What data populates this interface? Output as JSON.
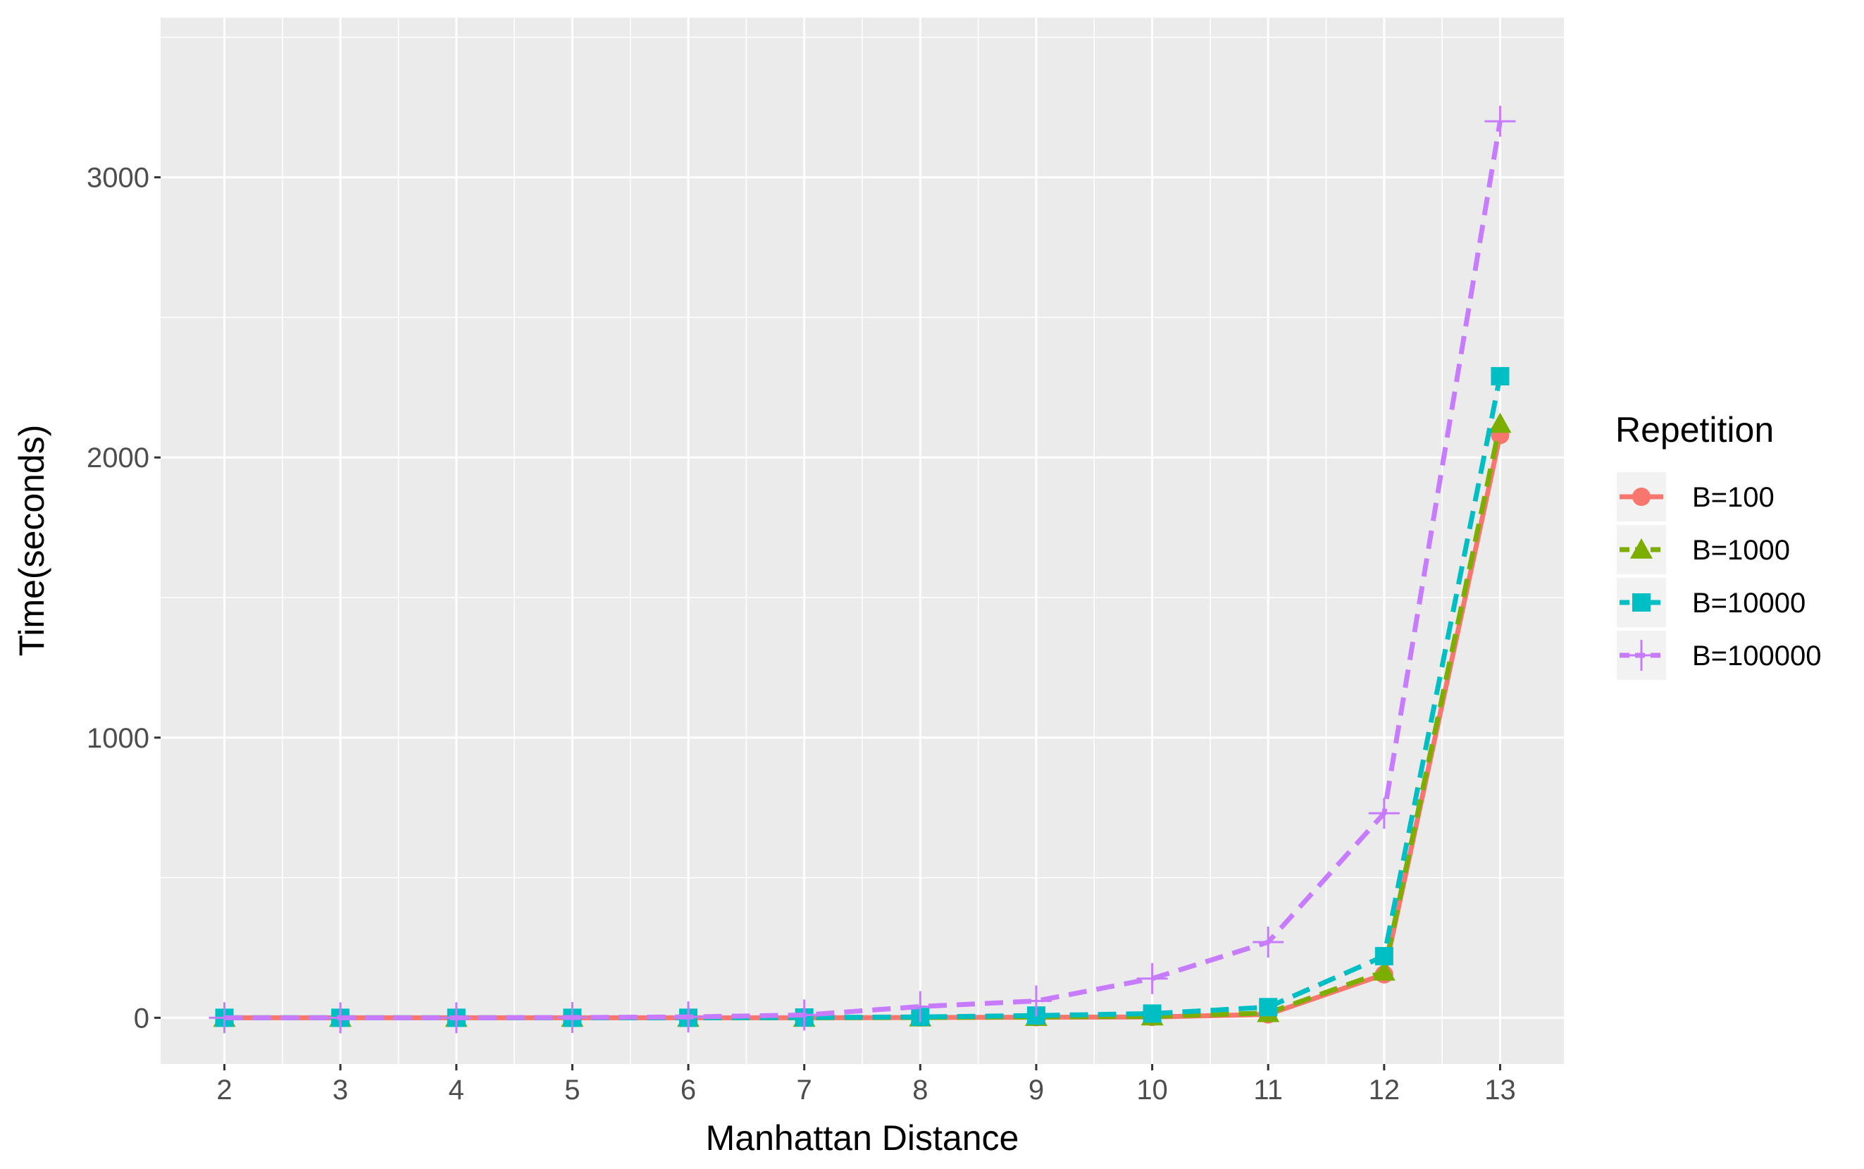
{
  "chart_data": {
    "type": "line",
    "xlabel": "Manhattan Distance",
    "ylabel": "Time(seconds)",
    "x": [
      2,
      3,
      4,
      5,
      6,
      7,
      8,
      9,
      10,
      11,
      12,
      13
    ],
    "xlim": [
      1.45,
      13.55
    ],
    "ylim": [
      -165,
      3570
    ],
    "x_ticks": [
      2,
      3,
      4,
      5,
      6,
      7,
      8,
      9,
      10,
      11,
      12,
      13
    ],
    "y_ticks": [
      0,
      1000,
      2000,
      3000
    ],
    "grid": true,
    "legend_title": "Repetition",
    "legend_position": "right",
    "series": [
      {
        "name": "B=100",
        "color": "#F8766D",
        "marker": "circle",
        "linetype": "solid",
        "values": [
          0,
          0,
          0,
          0,
          0,
          0,
          1,
          2,
          3,
          12,
          155,
          2080
        ]
      },
      {
        "name": "B=1000",
        "color": "#7CAE00",
        "marker": "triangle",
        "linetype": "dashed",
        "values": [
          0,
          0,
          0,
          0,
          0,
          0,
          1,
          3,
          5,
          17,
          165,
          2120
        ]
      },
      {
        "name": "B=10000",
        "color": "#00BFC4",
        "marker": "square",
        "linetype": "dashed",
        "values": [
          0,
          0,
          0,
          0,
          0,
          1,
          3,
          8,
          15,
          38,
          220,
          2290
        ]
      },
      {
        "name": "B=100000",
        "color": "#C77CFF",
        "marker": "cross",
        "linetype": "dashed",
        "values": [
          0,
          0,
          0,
          1,
          3,
          10,
          40,
          60,
          140,
          270,
          730,
          3200
        ]
      }
    ]
  }
}
